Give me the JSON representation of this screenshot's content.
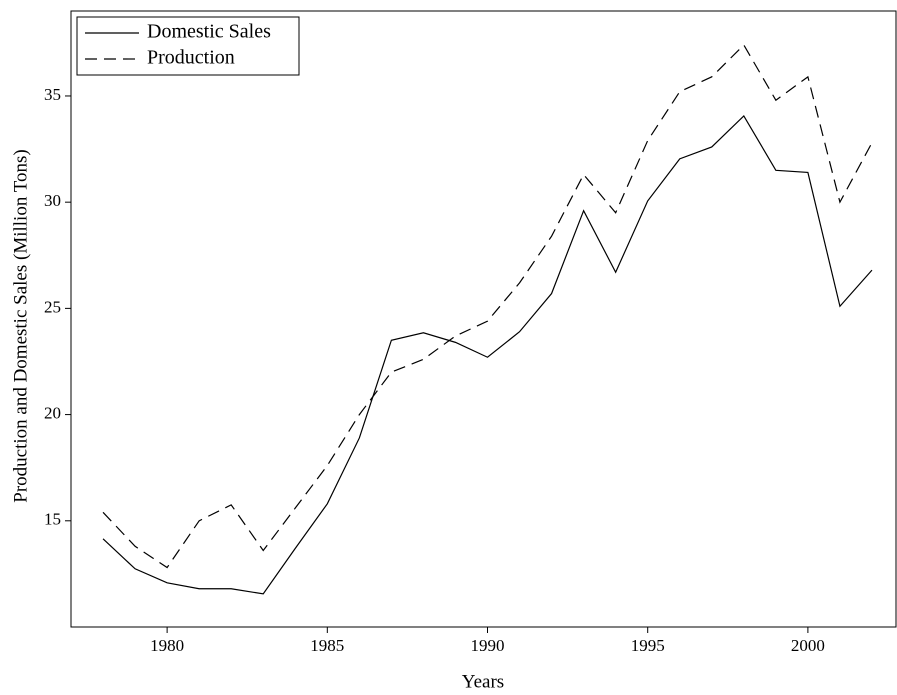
{
  "chart_data": {
    "type": "line",
    "xlabel": "Years",
    "ylabel": "Production and Domestic Sales (Million Tons)",
    "x": [
      1978,
      1979,
      1980,
      1981,
      1982,
      1983,
      1984,
      1985,
      1986,
      1987,
      1988,
      1989,
      1990,
      1991,
      1992,
      1993,
      1994,
      1995,
      1996,
      1997,
      1998,
      1999,
      2000,
      2001,
      2002
    ],
    "series": [
      {
        "name": "Domestic Sales",
        "color": "#000000",
        "line_style": "solid",
        "values": [
          14.15,
          12.74,
          12.08,
          11.8,
          11.8,
          11.56,
          13.7,
          15.8,
          18.9,
          23.5,
          23.85,
          23.4,
          22.7,
          23.9,
          25.7,
          29.6,
          26.7,
          30.06,
          32.04,
          32.6,
          34.06,
          31.5,
          31.4,
          25.1,
          26.8
        ]
      },
      {
        "name": "Production",
        "color": "#000000",
        "line_style": "dashed",
        "values": [
          15.4,
          13.8,
          12.8,
          15.0,
          15.75,
          13.6,
          15.6,
          17.6,
          20.0,
          22.0,
          22.6,
          23.7,
          24.4,
          26.2,
          28.4,
          31.3,
          29.5,
          32.9,
          35.2,
          35.9,
          37.4,
          34.8,
          35.9,
          30.0,
          32.8
        ]
      }
    ],
    "xlim": [
      1977,
      2002.75
    ],
    "xticks": [
      1980,
      1985,
      1990,
      1995,
      2000
    ],
    "ylim": [
      10,
      39
    ],
    "yticks": [
      15,
      20,
      25,
      30,
      35
    ],
    "legend": "upper left",
    "grid": false
  }
}
